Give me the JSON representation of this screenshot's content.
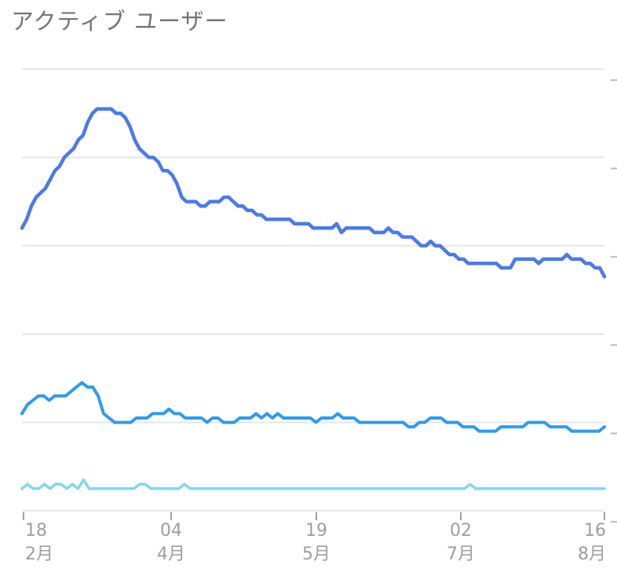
{
  "card": {
    "title": "アクティブ ユーザー"
  },
  "chart_data": {
    "type": "line",
    "title": "アクティブ ユーザー",
    "xlabel": "",
    "ylabel": "",
    "x_ticks": [
      {
        "day": "18",
        "month": "2月"
      },
      {
        "day": "04",
        "month": "4月"
      },
      {
        "day": "19",
        "month": "5月"
      },
      {
        "day": "02",
        "month": "7月"
      },
      {
        "day": "16",
        "month": "8月"
      }
    ],
    "grid": true,
    "ylim": [
      0,
      100
    ],
    "series_colors": [
      "#4a7be8",
      "#2f9bee",
      "#80d8ea"
    ],
    "series": [
      {
        "values": [
          64,
          66,
          69,
          71,
          72,
          73,
          75,
          77,
          78,
          80,
          81,
          82,
          84,
          85,
          88,
          90,
          91,
          91,
          91,
          91,
          90,
          90,
          89,
          87,
          84,
          82,
          81,
          80,
          80,
          79,
          77,
          77,
          76,
          74,
          71,
          70,
          70,
          70,
          69,
          69,
          70,
          70,
          70,
          71,
          71,
          70,
          69,
          69,
          68,
          68,
          67,
          67,
          66,
          66,
          66,
          66,
          66,
          66,
          65,
          65,
          65,
          65,
          64,
          64,
          64,
          64,
          64,
          65,
          63,
          64,
          64,
          64,
          64,
          64,
          64,
          63,
          63,
          63,
          64,
          63,
          63,
          62,
          62,
          62,
          61,
          60,
          60,
          61,
          60,
          60,
          59,
          58,
          58,
          57,
          57,
          56,
          56,
          56,
          56,
          56,
          56,
          56,
          55,
          55,
          55,
          57,
          57,
          57,
          57,
          57,
          56,
          57,
          57,
          57,
          57,
          57,
          58,
          57,
          57,
          57,
          56,
          56,
          55,
          55,
          53
        ]
      },
      {
        "values": [
          22,
          24,
          25,
          26,
          26,
          25,
          26,
          26,
          26,
          27,
          28,
          29,
          28,
          28,
          26,
          22,
          21,
          20,
          20,
          20,
          20,
          21,
          21,
          21,
          22,
          22,
          22,
          23,
          22,
          22,
          21,
          21,
          21,
          21,
          20,
          21,
          21,
          20,
          20,
          20,
          21,
          21,
          21,
          22,
          21,
          22,
          21,
          22,
          21,
          21,
          21,
          21,
          21,
          21,
          20,
          21,
          21,
          21,
          22,
          21,
          21,
          21,
          20,
          20,
          20,
          20,
          20,
          20,
          20,
          20,
          20,
          19,
          19,
          20,
          20,
          21,
          21,
          21,
          20,
          20,
          20,
          19,
          19,
          19,
          18,
          18,
          18,
          18,
          19,
          19,
          19,
          19,
          19,
          20,
          20,
          20,
          20,
          19,
          19,
          19,
          19,
          18,
          18,
          18,
          18,
          18,
          18,
          19
        ]
      },
      {
        "values": [
          5,
          6,
          5,
          5,
          6,
          5,
          6,
          6,
          5,
          6,
          5,
          7,
          5,
          5,
          5,
          5,
          5,
          5,
          5,
          5,
          5,
          6,
          6,
          5,
          5,
          5,
          5,
          5,
          5,
          6,
          5,
          5,
          5,
          5,
          5,
          5,
          5,
          5,
          5,
          5,
          5,
          5,
          5,
          5,
          5,
          5,
          5,
          5,
          5,
          5,
          5,
          5,
          5,
          5,
          5,
          5,
          5,
          5,
          5,
          5,
          5,
          5,
          5,
          5,
          5,
          5,
          5,
          5,
          5,
          5,
          5,
          5,
          5,
          5,
          5,
          5,
          5,
          5,
          5,
          5,
          6,
          5,
          5,
          5,
          5,
          5,
          5,
          5,
          5,
          5,
          5,
          5,
          5,
          5,
          5,
          5,
          5,
          5,
          5,
          5,
          5,
          5,
          5,
          5,
          5
        ]
      }
    ]
  }
}
